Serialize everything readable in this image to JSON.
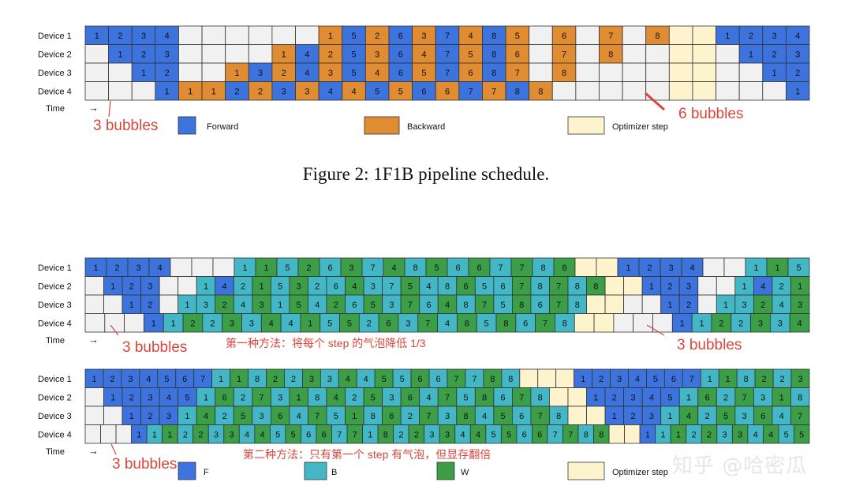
{
  "figure_caption": "Figure 2: 1F1B pipeline schedule.",
  "watermark": "知乎 @哈密瓜",
  "colors": {
    "forward": "#3d73dd",
    "backward": "#e08c33",
    "optimizer": "#fdf3cc",
    "empty": "#f1f1f1",
    "b_teal": "#44b7c6",
    "w_green": "#3d9e48",
    "annotation": "#d9463b",
    "grid": "#333333"
  },
  "diagrams": [
    {
      "id": "1f1b",
      "rows": [
        {
          "label": "Device 1",
          "cells": "F1 F2 F3 F4 E E E E E E B1 F5 B2 F6 B3 F7 B4 F8 B5 E B6 E B7 E B8 O O F1 F2 F3 F4"
        },
        {
          "label": "Device 2",
          "cells": "E F1 F2 F3 E E E E B1 F4 B2 F5 B3 F6 B4 F7 B5 F8 B6 E B7 E B8 E E O O E F1 F2 F3"
        },
        {
          "label": "Device 3",
          "cells": "E E F1 F2 E E B1 F3 B2 F4 B3 F5 B4 F6 B5 F7 B6 F8 B7 E B8 E E E E O O E E F1 F2"
        },
        {
          "label": "Device 4",
          "cells": "E E E F1 B1 B1 F2 B2 F3 B3 F4 B4 F5 B5 F6 B6 F7 B7 F8 B8 E E E E E O O E E E F1"
        }
      ],
      "time_label": "Time",
      "time_arrow": "→",
      "annotations": [
        "3 bubbles",
        "6 bubbles"
      ],
      "legend": [
        "Forward",
        "Backward",
        "Optimizer step"
      ]
    },
    {
      "id": "zb-h1",
      "rows": [
        {
          "label": "Device 1",
          "cells": "F1 F2 F3 F4 E E E B1 W1 B5 W2 B6 W3 B7 W4 B8 W5 B6 W6 B7 W7 B8 W8 O O F1 F2 F3 F4 E E B1 W1 B5"
        },
        {
          "label": "Device 2",
          "cells": "E F1 F2 F3 E E B1 F4 B2 W1 B5 W3 B2 B6 W4 B3 B7 W5 B4 B8 W6 B5 B6 W7 B8 W7 B8 W8 O O F1 F2 F3 E E B1 F4 B2 W1"
        },
        {
          "label": "Device 3",
          "cells": "E E F1 F2 E B1 B3 W2 B4 W3 B1 W5 B4 W2 B6 W5 B3 W7 B6 W4 B8 W7 B5 W8 B6 W7 B8 O O E E F1 F2 E B1 B3 W2 B4 W3"
        },
        {
          "label": "Device 4",
          "cells": "E E E F1 B1 W2 B2 W3 B3 W4 B4 W1 B5 W5 B2 W6 B3 W7 B4 W8 B5 W8 B6 W7 B8 O O E E E F1 B1 W2 B2 W3 B3 W4"
        }
      ],
      "time_label": "Time",
      "time_arrow": "→",
      "annotations": [
        "3 bubbles",
        "第一种方法：将每个 step 的气泡降低 1/3",
        "3 bubbles"
      ]
    },
    {
      "id": "zb-h2",
      "rows": [
        {
          "label": "Device 1",
          "cells": "F1 F2 F3 F4 F5 F6 F7 B1 W1 B8 W2 B2 W3 B3 W4 B4 W5 B5 W6 B6 W7 B7 W8 B8 O O O F1 F2 F3 F4 F5 F6 F7 B1 W1 B8 W2 B2 W3"
        },
        {
          "label": "Device 2",
          "cells": "E F1 F2 F3 F4 F5 B1 W6 B2 W7 B3 W1 B8 W4 B2 W5 B3 W6 B4 W7 B5 W8 B6 W7 B8 O O F1 F2 F3 F4 F5 B1 W6 B2 W7 B3 W1 B8"
        },
        {
          "label": "Device 3",
          "cells": "E E F1 F2 F3 B1 W4 B2 W5 B3 W6 B4 W7 B5 W1 B8 W6 B2 W7 B3 W8 B4 W5 B6 W7 B8 O O F1 F2 F3 B1 W4 B2 W5 B3 W6 B4 W7"
        },
        {
          "label": "Device 4",
          "cells": "E E E F1 B1 W1 B2 W2 B3 W3 B4 W4 B5 W5 B6 W6 B7 W7 B1 W8 B2 W2 B3 W3 B4 W4 B5 W5 B6 W6 B7 W7 B8 W8 O O F1 B1 W1 B2 W2 B3 W3 B4 W4 B5 W5"
        }
      ],
      "time_label": "Time",
      "time_arrow": "→",
      "annotations": [
        "3 bubbles",
        "第二种方法：只有第一个 step 有气泡，但显存翻倍"
      ],
      "legend": [
        "F",
        "B",
        "W",
        "Optimizer step"
      ]
    }
  ]
}
